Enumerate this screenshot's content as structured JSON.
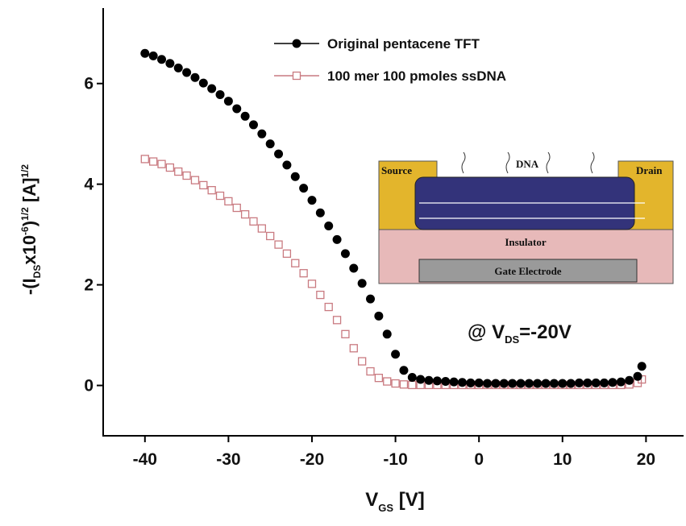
{
  "chart_data": {
    "type": "scatter",
    "x": [
      -40,
      -39,
      -38,
      -37,
      -36,
      -35,
      -34,
      -33,
      -32,
      -31,
      -30,
      -29,
      -28,
      -27,
      -26,
      -25,
      -24,
      -23,
      -22,
      -21,
      -20,
      -19,
      -18,
      -17,
      -16,
      -15,
      -14,
      -13,
      -12,
      -11,
      -10,
      -9,
      -8,
      -7,
      -6,
      -5,
      -4,
      -3,
      -2,
      -1,
      0,
      1,
      2,
      3,
      4,
      5,
      6,
      7,
      8,
      9,
      10,
      11,
      12,
      13,
      14,
      15,
      16,
      17,
      18,
      19,
      19.5
    ],
    "series": [
      {
        "name": "Original pentacene TFT",
        "color": "#000000",
        "marker": "circle",
        "values": [
          6.6,
          6.55,
          6.48,
          6.4,
          6.31,
          6.22,
          6.12,
          6.01,
          5.9,
          5.78,
          5.65,
          5.5,
          5.35,
          5.18,
          5.0,
          4.8,
          4.6,
          4.38,
          4.15,
          3.92,
          3.68,
          3.43,
          3.17,
          2.9,
          2.62,
          2.33,
          2.03,
          1.72,
          1.38,
          1.02,
          0.62,
          0.3,
          0.16,
          0.12,
          0.1,
          0.09,
          0.08,
          0.07,
          0.06,
          0.05,
          0.05,
          0.04,
          0.04,
          0.04,
          0.04,
          0.04,
          0.04,
          0.04,
          0.04,
          0.04,
          0.04,
          0.04,
          0.05,
          0.05,
          0.05,
          0.05,
          0.06,
          0.07,
          0.1,
          0.18,
          0.38
        ]
      },
      {
        "name": "100 mer 100 pmoles ssDNA",
        "color": "#c97a80",
        "marker": "square",
        "values": [
          4.5,
          4.45,
          4.4,
          4.33,
          4.25,
          4.17,
          4.08,
          3.98,
          3.88,
          3.77,
          3.66,
          3.53,
          3.4,
          3.26,
          3.12,
          2.97,
          2.8,
          2.62,
          2.43,
          2.23,
          2.02,
          1.8,
          1.56,
          1.3,
          1.02,
          0.74,
          0.48,
          0.28,
          0.15,
          0.08,
          0.04,
          0.02,
          0.01,
          0.01,
          0.01,
          0.01,
          0.01,
          0.01,
          0.01,
          0.01,
          0.01,
          0.01,
          0.01,
          0.01,
          0.01,
          0.01,
          0.01,
          0.01,
          0.01,
          0.01,
          0.01,
          0.01,
          0.01,
          0.01,
          0.01,
          0.01,
          0.01,
          0.01,
          0.02,
          0.05,
          0.12
        ]
      }
    ],
    "xlim": [
      -45,
      24.5
    ],
    "ylim": [
      -1,
      7.5
    ],
    "xticks": [
      -40,
      -30,
      -20,
      -10,
      0,
      10,
      20
    ],
    "yticks": [
      0,
      2,
      4,
      6
    ],
    "x_label": [
      "V",
      "GS",
      " [V]"
    ],
    "y_label": [
      "-(I",
      "DS",
      "x10",
      "-6",
      ")",
      "1/2",
      " [A]",
      "1/2"
    ],
    "annotation": [
      "@ V",
      "DS",
      "=-20V"
    ],
    "inset_labels": {
      "source": "Source",
      "drain": "Drain",
      "dna": "DNA",
      "insulator": "Insulator",
      "gate": "Gate Electrode"
    },
    "legend": "top"
  }
}
